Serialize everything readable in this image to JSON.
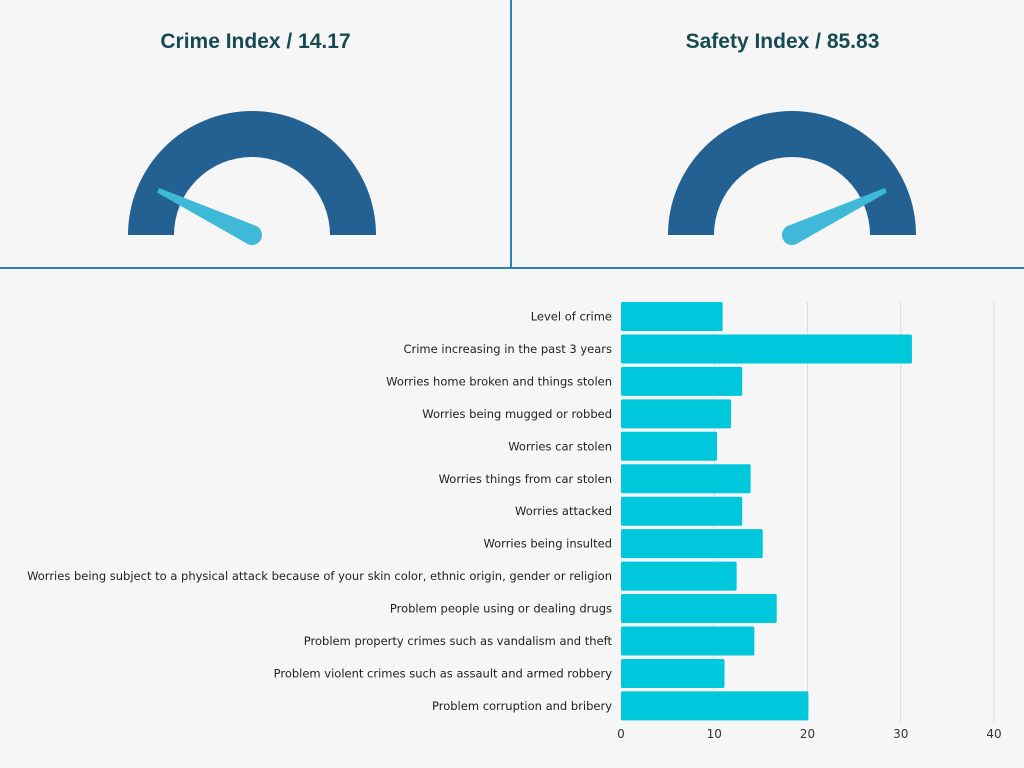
{
  "gauges": [
    {
      "title": "Crime Index / 14.17",
      "value": 14.17,
      "max": 100
    },
    {
      "title": "Safety Index / 85.83",
      "value": 85.83,
      "max": 100
    }
  ],
  "colors": {
    "gauge_arc": "#236192",
    "needle": "#40b8d8",
    "bar": "#00c8dc",
    "title": "#174a52",
    "divider": "#2f80b3"
  },
  "chart_data": {
    "type": "bar",
    "orientation": "horizontal",
    "categories": [
      "Level of crime",
      "Crime increasing in the past 3 years",
      "Worries home broken and things stolen",
      "Worries being mugged or robbed",
      "Worries car stolen",
      "Worries things from car stolen",
      "Worries attacked",
      "Worries being insulted",
      "Worries being subject to a physical attack because of your skin color, ethnic origin, gender or religion",
      "Problem people using or dealing drugs",
      "Problem property crimes such as vandalism and theft",
      "Problem violent crimes such as assault and armed robbery",
      "Problem corruption and bribery"
    ],
    "values": [
      10.9,
      31.2,
      13.0,
      11.8,
      10.3,
      13.9,
      13.0,
      15.2,
      12.4,
      16.7,
      14.3,
      11.1,
      20.1
    ],
    "xlim": [
      0,
      40
    ],
    "xticks": [
      0,
      10,
      20,
      30,
      40
    ],
    "grid": true
  }
}
